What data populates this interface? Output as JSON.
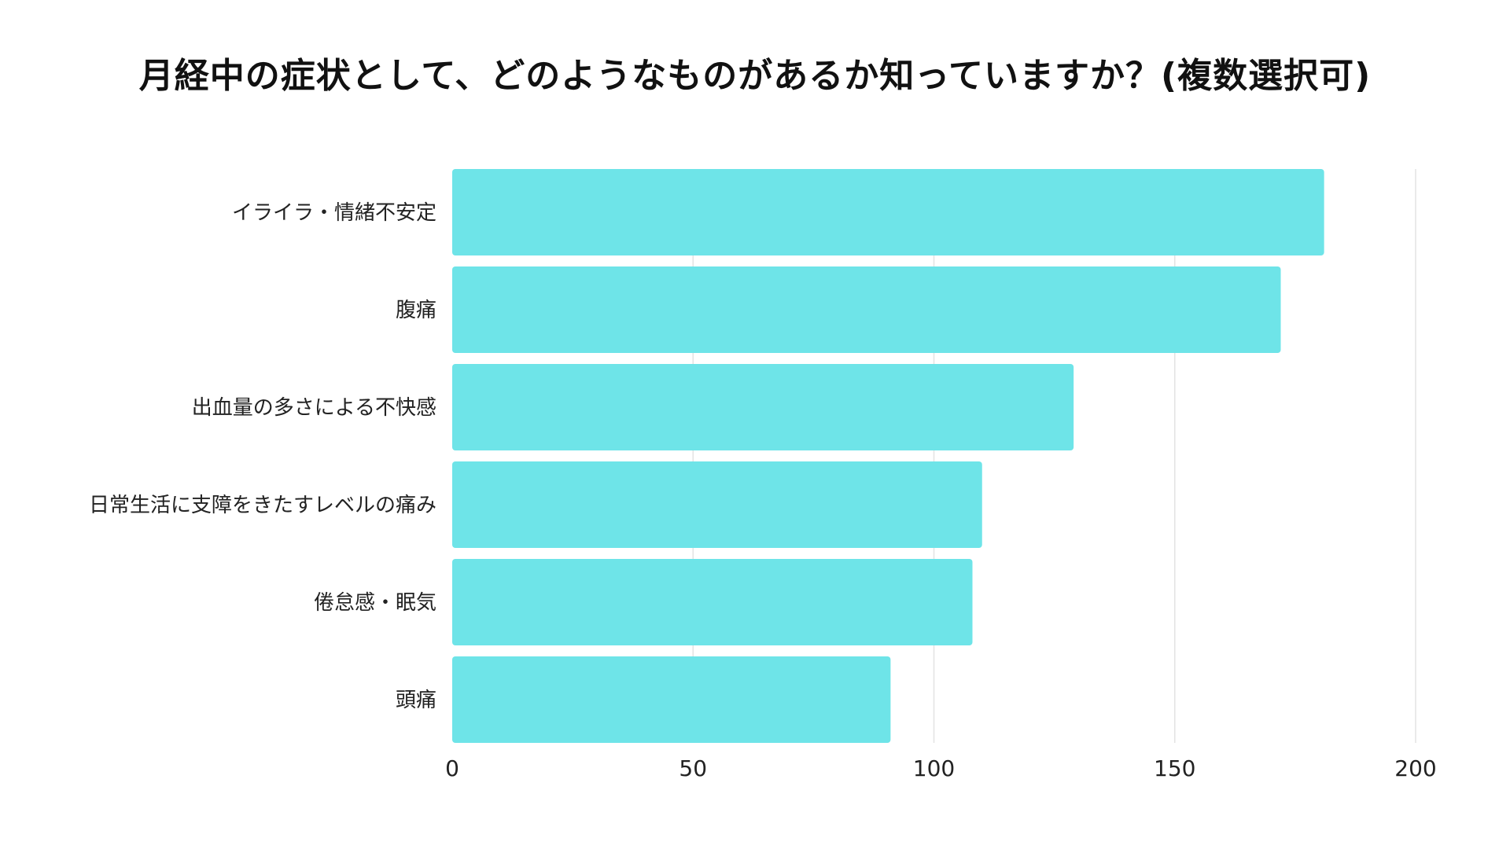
{
  "chart_data": {
    "type": "bar",
    "orientation": "horizontal",
    "title": "月経中の症状として、どのようなものがあるか知っていますか？(複数選択可)",
    "categories": [
      "イライラ・情緒不安定",
      "腹痛",
      "出血量の多さによる不快感",
      "日常生活に支障をきたすレベルの痛み",
      "倦怠感・眠気",
      "頭痛"
    ],
    "values": [
      181,
      172,
      129,
      110,
      108,
      91
    ],
    "xlim": [
      0,
      200
    ],
    "xticks": [
      "0",
      "50",
      "100",
      "150",
      "200"
    ],
    "xtick_values": [
      0,
      50,
      100,
      150,
      200
    ],
    "grid": "vertical",
    "legend": "none",
    "bar_color": "#6ee4e8",
    "grid_color": "#e3e3e3",
    "xlabel": "",
    "ylabel": ""
  }
}
